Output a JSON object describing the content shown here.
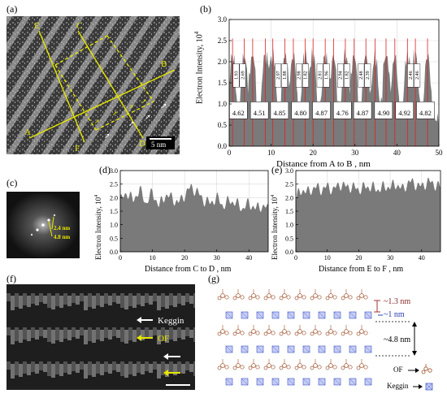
{
  "panels": {
    "a": "(a)",
    "b": "(b)",
    "c": "(c)",
    "d": "(d)",
    "e": "(e)",
    "f": "(f)",
    "g": "(g)"
  },
  "micrograph_a": {
    "point_labels": [
      "E",
      "C",
      "B",
      "A",
      "F",
      "D"
    ],
    "scalebar": "5 nm"
  },
  "fft_c": {
    "label1": "2.4 nm",
    "label2": "4.8 nm"
  },
  "panel_f": {
    "keggin": "Keggin",
    "of": "OF"
  },
  "panel_g": {
    "d1": "~1.3 nm",
    "d2": "~1 nm",
    "d3": "~4.8 nm",
    "legend_of": "OF",
    "legend_keggin": "Keggin"
  },
  "chart_data": [
    {
      "type": "area",
      "panel": "b",
      "xlabel": "Distance from A to B , nm",
      "ylabel": "Electron Intensity, 10",
      "ylabel_exp": "4",
      "xlim": [
        0,
        50
      ],
      "ylim": [
        0,
        3.0
      ],
      "xticks": [
        0,
        10,
        20,
        30,
        40,
        50
      ],
      "yticks": [
        0,
        0.5,
        1.0,
        1.5,
        2.0,
        2.5,
        3.0
      ],
      "peaks_x": [
        0.8,
        3.6,
        5.6,
        8.6,
        10.4,
        13.3,
        15.3,
        18.1,
        20.0,
        22.9,
        24.9,
        27.7,
        29.8,
        32.6,
        34.8,
        37.4,
        39.5,
        42.5,
        44.4,
        47.3
      ],
      "peaks_y": [
        2.6,
        2.4,
        2.6,
        2.9,
        2.7,
        2.6,
        2.5,
        2.9,
        2.7,
        2.6,
        2.4,
        2.8,
        2.6,
        2.8,
        2.5,
        2.9,
        2.4,
        2.7,
        2.6,
        2.6
      ],
      "pair_labels": [
        [
          "1.93",
          "2.69"
        ],
        [
          "2.97",
          "1.88"
        ],
        [
          "2.98",
          "1.82"
        ],
        [
          "2.81",
          "1.96"
        ],
        [
          "2.94",
          "1.82"
        ],
        [
          "2.48",
          "2.39"
        ],
        [
          "2.46",
          "2.46"
        ]
      ],
      "periods": [
        "4.62",
        "4.51",
        "4.85",
        "4.80",
        "4.87",
        "4.76",
        "4.87",
        "4.90",
        "4.92",
        "4.82"
      ],
      "grid": true
    },
    {
      "type": "area",
      "panel": "d",
      "xlabel": "Distance from C to D , nm",
      "ylabel": "Electron Intensity, 10",
      "ylabel_exp": "4",
      "xlim": [
        0,
        46
      ],
      "ylim": [
        0,
        3.0
      ],
      "xticks": [
        0,
        10,
        20,
        30,
        40
      ],
      "yticks": [
        0,
        0.5,
        1.0,
        1.5,
        2.0,
        2.5,
        3.0
      ],
      "profile_x": [
        0,
        2,
        4,
        6,
        8,
        10,
        12,
        14,
        16,
        18,
        20,
        22,
        24,
        26,
        28,
        30,
        32,
        34,
        36,
        38,
        40,
        42,
        44,
        46
      ],
      "profile_y": [
        1.9,
        2.2,
        1.9,
        2.3,
        1.8,
        2.2,
        1.7,
        2.1,
        2.0,
        1.8,
        2.1,
        2.4,
        2.2,
        1.9,
        1.8,
        2.0,
        1.7,
        1.9,
        1.8,
        1.6,
        1.8,
        1.6,
        1.7,
        1.6
      ],
      "grid": true
    },
    {
      "type": "area",
      "panel": "e",
      "xlabel": "Distance from E to F , nm",
      "ylabel": "Electron Intensity, 10",
      "ylabel_exp": "4",
      "xlim": [
        0,
        46
      ],
      "ylim": [
        0,
        3.0
      ],
      "xticks": [
        0,
        10,
        20,
        30,
        40
      ],
      "yticks": [
        0,
        0.5,
        1.0,
        1.5,
        2.0,
        2.5,
        3.0
      ],
      "profile_x": [
        0,
        2,
        4,
        6,
        8,
        10,
        12,
        14,
        16,
        18,
        20,
        22,
        24,
        26,
        28,
        30,
        32,
        34,
        36,
        38,
        40,
        42,
        44,
        46
      ],
      "profile_y": [
        2.0,
        2.3,
        2.2,
        2.4,
        2.3,
        2.4,
        2.3,
        2.5,
        2.4,
        2.4,
        2.3,
        2.4,
        2.4,
        2.3,
        2.4,
        2.4,
        2.5,
        2.3,
        2.6,
        2.5,
        2.4,
        2.6,
        2.5,
        2.4
      ],
      "grid": true
    }
  ]
}
